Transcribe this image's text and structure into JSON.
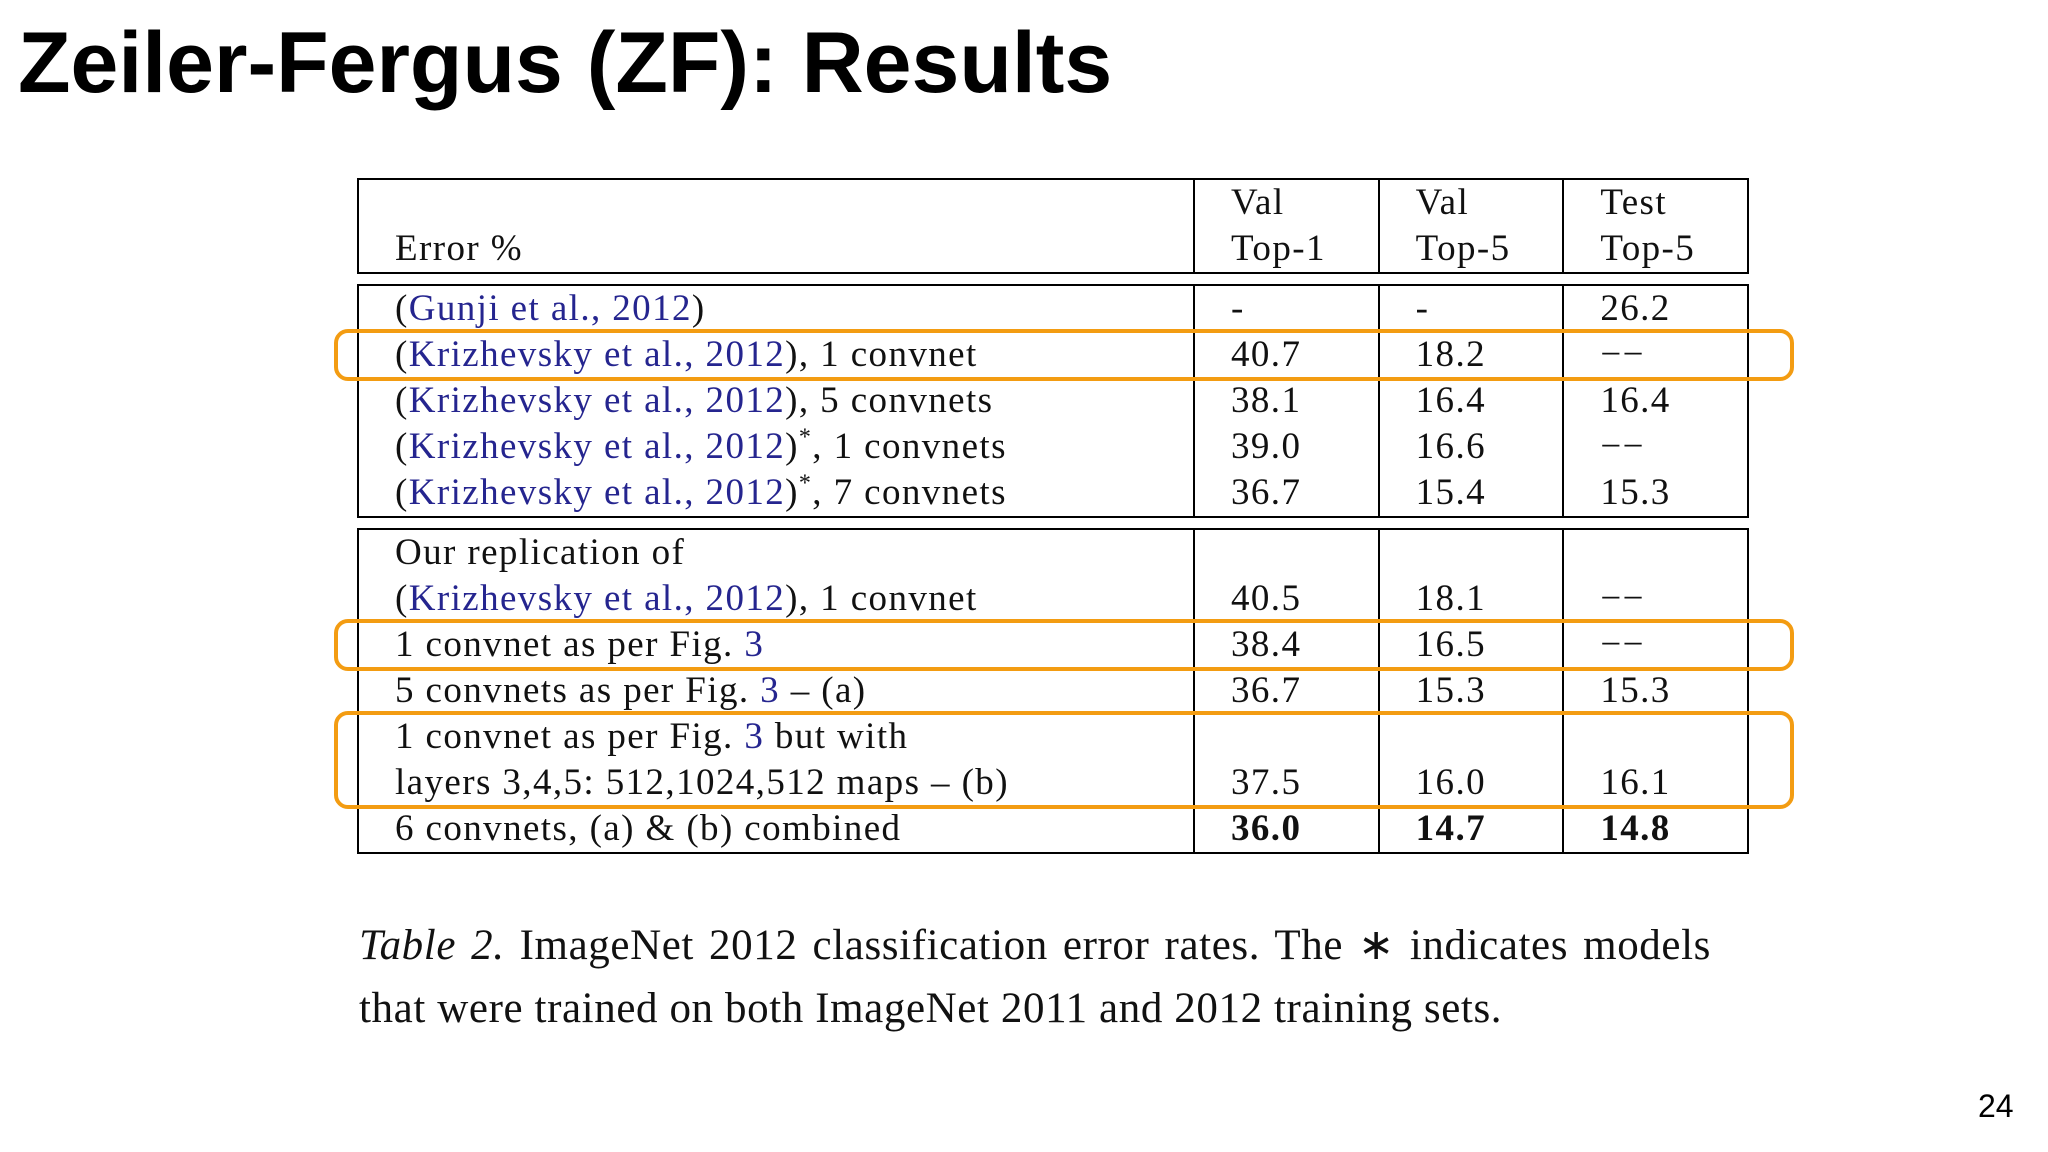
{
  "title": "Zeiler-Fergus (ZF): Results",
  "page_number": "24",
  "table": {
    "header": [
      [
        "Error %"
      ],
      [
        "Val",
        "Top-1"
      ],
      [
        "Val",
        "Top-5"
      ],
      [
        "Test",
        "Top-5"
      ]
    ],
    "groups": [
      {
        "rows": [
          {
            "lines": [
              [
                {
                  "text": "("
                },
                {
                  "text": "Gunji et al., 2012",
                  "style": "cite"
                },
                {
                  "text": ")"
                }
              ]
            ],
            "values": [
              "-",
              "-",
              "26.2"
            ]
          },
          {
            "lines": [
              [
                {
                  "text": "("
                },
                {
                  "text": "Krizhevsky et al., 2012",
                  "style": "cite"
                },
                {
                  "text": "), 1 convnet"
                }
              ]
            ],
            "values": [
              "40.7",
              "18.2",
              "−−"
            ],
            "highlight": true
          },
          {
            "lines": [
              [
                {
                  "text": "("
                },
                {
                  "text": "Krizhevsky et al., 2012",
                  "style": "cite"
                },
                {
                  "text": "), 5 convnets"
                }
              ]
            ],
            "values": [
              "38.1",
              "16.4",
              "16.4"
            ]
          },
          {
            "lines": [
              [
                {
                  "text": "("
                },
                {
                  "text": "Krizhevsky et al., 2012",
                  "style": "cite"
                },
                {
                  "text": ")"
                },
                {
                  "text": "*",
                  "style": "sup"
                },
                {
                  "text": ", 1 convnets"
                }
              ]
            ],
            "values": [
              "39.0",
              "16.6",
              "−−"
            ]
          },
          {
            "lines": [
              [
                {
                  "text": "("
                },
                {
                  "text": "Krizhevsky et al., 2012",
                  "style": "cite"
                },
                {
                  "text": ")"
                },
                {
                  "text": "*",
                  "style": "sup"
                },
                {
                  "text": ", 7 convnets"
                }
              ]
            ],
            "values": [
              "36.7",
              "15.4",
              "15.3"
            ]
          }
        ]
      },
      {
        "rows": [
          {
            "lines": [
              [
                {
                  "text": "Our replication of"
                }
              ],
              [
                {
                  "text": "("
                },
                {
                  "text": "Krizhevsky et al., 2012",
                  "style": "cite"
                },
                {
                  "text": "), 1 convnet"
                }
              ]
            ],
            "values": [
              "40.5",
              "18.1",
              "−−"
            ]
          },
          {
            "lines": [
              [
                {
                  "text": "1 convnet as per Fig. "
                },
                {
                  "text": "3",
                  "style": "cite"
                }
              ]
            ],
            "values": [
              "38.4",
              "16.5",
              "−−"
            ],
            "highlight": true
          },
          {
            "lines": [
              [
                {
                  "text": "5 convnets as per Fig. "
                },
                {
                  "text": "3",
                  "style": "cite"
                },
                {
                  "text": " – (a)"
                }
              ]
            ],
            "values": [
              "36.7",
              "15.3",
              "15.3"
            ]
          },
          {
            "lines": [
              [
                {
                  "text": "1 convnet as per Fig. "
                },
                {
                  "text": "3",
                  "style": "cite"
                },
                {
                  "text": " but with"
                }
              ],
              [
                {
                  "text": "layers 3,4,5: 512,1024,512 maps – (b)"
                }
              ]
            ],
            "values": [
              "37.5",
              "16.0",
              "16.1"
            ],
            "highlight": true
          },
          {
            "lines": [
              [
                {
                  "text": "6 convnets, (a) & (b) combined"
                }
              ]
            ],
            "values": [
              "36.0",
              "14.7",
              "14.8"
            ],
            "bold": true
          }
        ]
      }
    ]
  },
  "caption": {
    "label": "Table 2.",
    "text": "ImageNet 2012 classification error rates. The ∗ indicates models that were trained on both ImageNet 2011 and 2012 training sets."
  }
}
